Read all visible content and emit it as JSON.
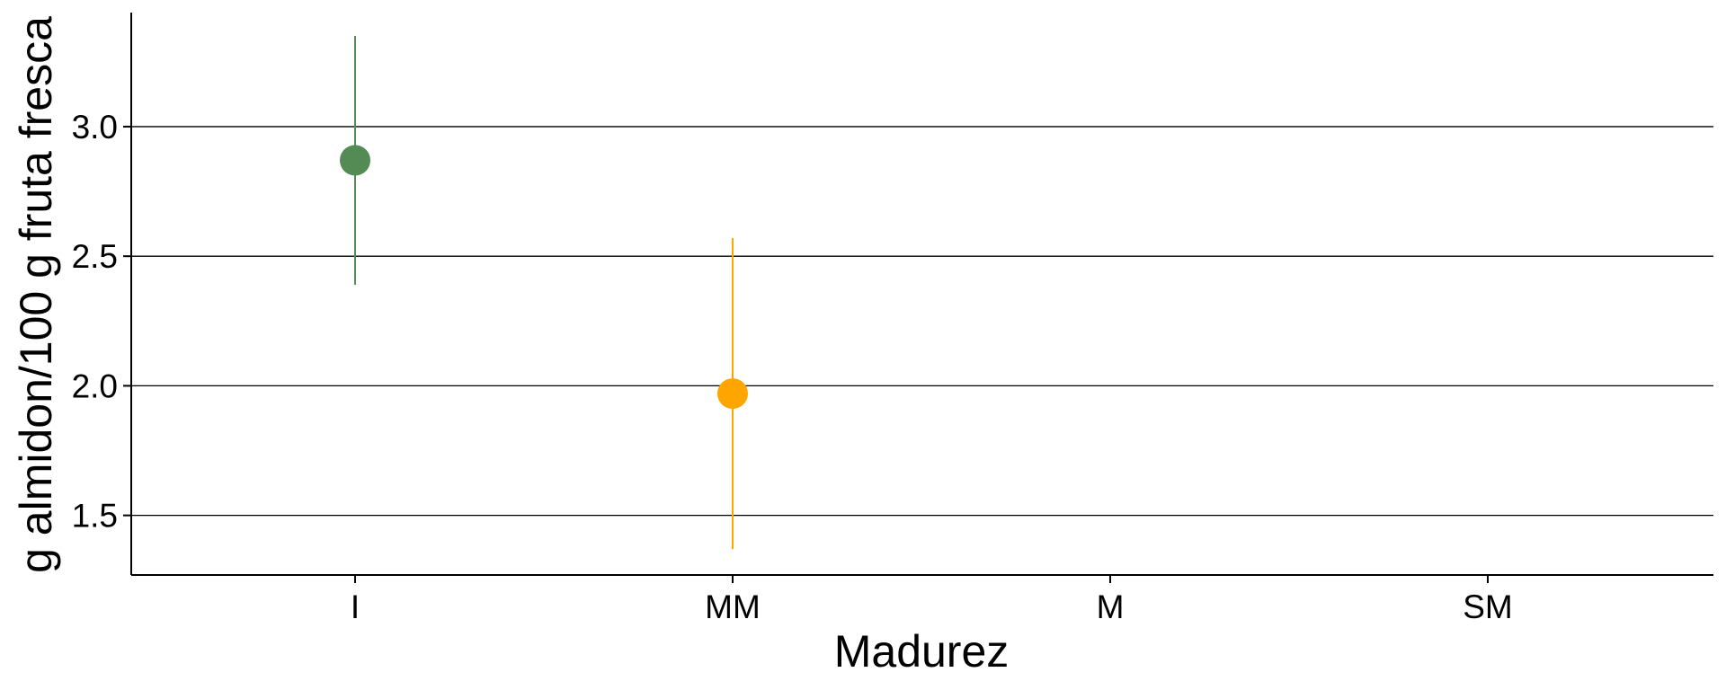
{
  "chart_data": {
    "type": "scatter",
    "title": "",
    "xlabel": "Madurez",
    "ylabel": "g almidon/100 g fruta fresca",
    "categories": [
      "I",
      "MM",
      "M",
      "SM"
    ],
    "ylim": [
      1.27,
      3.44
    ],
    "yticks": [
      1.5,
      2.0,
      2.5,
      3.0
    ],
    "ytick_labels": [
      "1.5",
      "2.0",
      "2.5",
      "3.0"
    ],
    "grid": "horizontal",
    "legend": "none",
    "points": [
      {
        "category": "I",
        "value": 2.87,
        "lower": 2.39,
        "upper": 3.35,
        "color": "#548b54"
      },
      {
        "category": "MM",
        "value": 1.97,
        "lower": 1.37,
        "upper": 2.57,
        "color": "#ffa500"
      }
    ]
  }
}
